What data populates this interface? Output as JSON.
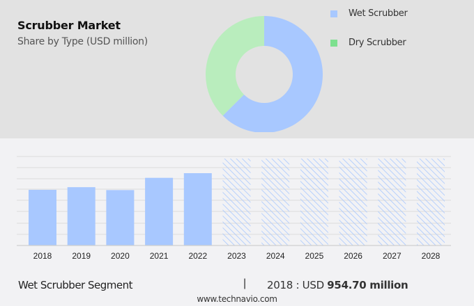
{
  "header": {
    "title": "Scrubber Market",
    "subtitle": "Share by Type (USD million)"
  },
  "legend": [
    {
      "label": "Wet Scrubber",
      "color": "#a8c8ff"
    },
    {
      "label": "Dry Scrubber",
      "color": "#7de08f"
    }
  ],
  "footer": {
    "segment": "Wet Scrubber Segment",
    "separator": "|",
    "year_prefix": "2018 : USD ",
    "value": "954.70 million",
    "site": "www.technavio.com"
  },
  "colors": {
    "wet": "#a8c8ff",
    "dry_donut": "#b9edbd",
    "dry_legend": "#7de08f",
    "forecast_hatch": "#a8c8ff",
    "top_band": "#e2e2e2",
    "bottom_bg": "#f2f2f4"
  },
  "chart_data": [
    {
      "type": "pie",
      "title": "Scrubber Market - Share by Type (USD million)",
      "donut": true,
      "labels": [
        "Wet Scrubber",
        "Dry Scrubber"
      ],
      "values": [
        62.5,
        37.5
      ],
      "legend_position": "right"
    },
    {
      "type": "bar",
      "title": "Wet Scrubber Segment",
      "categories": [
        "2018",
        "2019",
        "2020",
        "2021",
        "2022",
        "2023",
        "2024",
        "2025",
        "2026",
        "2027",
        "2028"
      ],
      "values": [
        954.7,
        1000,
        950,
        1160,
        1240,
        null,
        null,
        null,
        null,
        null,
        null
      ],
      "forecast_categories": [
        "2023",
        "2024",
        "2025",
        "2026",
        "2027",
        "2028"
      ],
      "annotation": "2018 : USD 954.70 million",
      "xlabel": "",
      "ylabel": "",
      "grid": true,
      "grid_lines": 8
    }
  ]
}
